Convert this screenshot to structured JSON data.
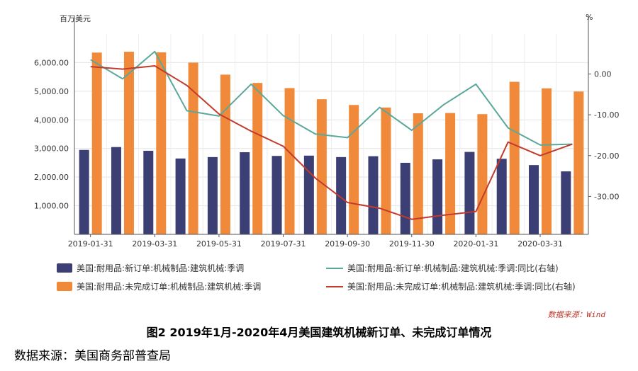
{
  "chart_data": {
    "type": "bar",
    "left_unit": "百万美元",
    "right_unit": "%",
    "ylim_left": [
      0,
      7000
    ],
    "yticks_left": [
      "1,000.00",
      "2,000.00",
      "3,000.00",
      "4,000.00",
      "5,000.00",
      "6,000.00"
    ],
    "ylim_right": [
      -39.3,
      9.8
    ],
    "yticks_right": [
      "-30.00",
      "-20.00",
      "-10.00",
      "0.00"
    ],
    "x_tick_labels": [
      "2019-01-31",
      "2019-03-31",
      "2019-05-31",
      "2019-07-31",
      "2019-09-30",
      "2019-11-30",
      "2020-01-31",
      "2020-03-31"
    ],
    "categories": [
      "2019-01-31",
      "2019-02-28",
      "2019-03-31",
      "2019-04-30",
      "2019-05-31",
      "2019-06-30",
      "2019-07-31",
      "2019-08-31",
      "2019-09-30",
      "2019-10-31",
      "2019-11-30",
      "2019-12-31",
      "2020-01-31",
      "2020-02-29",
      "2020-03-31",
      "2020-04-30"
    ],
    "series": [
      {
        "name": "美国:耐用品:新订单:机械制品:建筑机械:季调",
        "kind": "bar",
        "axis": "left",
        "color": "#3b3f73",
        "values": [
          2950,
          3050,
          2920,
          2650,
          2700,
          2870,
          2740,
          2750,
          2700,
          2730,
          2500,
          2620,
          2880,
          2640,
          2420,
          2200
        ]
      },
      {
        "name": "美国:耐用品:未完成订单:机械制品:建筑机械:季调",
        "kind": "bar",
        "axis": "left",
        "color": "#f08a3a",
        "values": [
          6350,
          6380,
          6360,
          6000,
          5580,
          5290,
          5110,
          4720,
          4520,
          4430,
          4230,
          4240,
          4200,
          5330,
          5100,
          4990
        ]
      },
      {
        "name": "美国:耐用品:新订单:机械制品:建筑机械:季调:同比(右轴)",
        "kind": "line",
        "axis": "right",
        "color": "#5ba89a",
        "values": [
          3.5,
          -1.2,
          5.5,
          -9.0,
          -10.3,
          -2.5,
          -10.2,
          -14.7,
          -15.6,
          -8.2,
          -13.8,
          -7.5,
          -2.5,
          -13.2,
          -17.4,
          -17.2
        ]
      },
      {
        "name": "美国:耐用品:未完成订单:机械制品:建筑机械:季调:同比(右轴)",
        "kind": "line",
        "axis": "right",
        "color": "#c23b2c",
        "values": [
          1.8,
          1.2,
          2.0,
          -2.8,
          -9.8,
          -14.0,
          -17.7,
          -25.5,
          -31.5,
          -32.9,
          -35.6,
          -34.6,
          -33.7,
          -16.7,
          -20.0,
          -17.2
        ]
      }
    ],
    "grid": true
  },
  "source_note": "数据来源：Wind",
  "caption": "图2 2019年1月-2020年4月美国建筑机械新订单、未完成订单情况",
  "source": "数据来源：美国商务部普查局"
}
